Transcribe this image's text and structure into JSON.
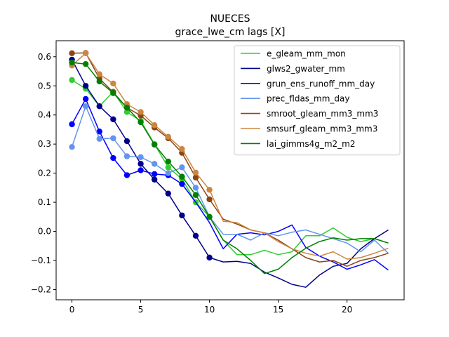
{
  "chart_data": {
    "type": "line",
    "title": "NUECES",
    "subtitle": "grace_lwe_cm lags [X]",
    "xlabel": "",
    "ylabel": "",
    "xlim": [
      -1.15,
      24.15
    ],
    "ylim": [
      -0.235,
      0.655
    ],
    "x_ticks": [
      0,
      5,
      10,
      15,
      20
    ],
    "y_ticks": [
      -0.2,
      -0.1,
      0.0,
      0.1,
      0.2,
      0.3,
      0.4,
      0.5,
      0.6
    ],
    "y_tick_labels": [
      "−0.2",
      "−0.1",
      "0.0",
      "0.1",
      "0.2",
      "0.3",
      "0.4",
      "0.5",
      "0.6"
    ],
    "grid": false,
    "legend_position": "upper right",
    "markers_note": "dots drawn on lags 0–10",
    "x": [
      0,
      1,
      2,
      3,
      4,
      5,
      6,
      7,
      8,
      9,
      10,
      11,
      12,
      13,
      14,
      15,
      16,
      17,
      18,
      19,
      20,
      21,
      22,
      23
    ],
    "series": [
      {
        "name": "e_gleam_mm_mon",
        "color": "#32cd32",
        "marker_count": 11,
        "values": [
          0.52,
          0.49,
          0.43,
          0.48,
          0.41,
          0.38,
          0.3,
          0.22,
          0.18,
          0.1,
          0.05,
          -0.03,
          -0.08,
          -0.08,
          -0.065,
          -0.08,
          -0.07,
          -0.015,
          -0.015,
          0.012,
          -0.02,
          -0.035,
          -0.025,
          -0.04
        ]
      },
      {
        "name": "glws2_gwater_mm",
        "color": "#00008b",
        "marker_count": 11,
        "values": [
          0.59,
          0.5,
          0.43,
          0.385,
          0.31,
          0.232,
          0.178,
          0.13,
          0.055,
          -0.015,
          -0.09,
          -0.105,
          -0.103,
          -0.11,
          -0.14,
          -0.16,
          -0.182,
          -0.192,
          -0.15,
          -0.12,
          -0.11,
          -0.06,
          -0.025,
          0.005
        ]
      },
      {
        "name": "grun_ens_runoff_mm_day",
        "color": "#0000ff",
        "marker_count": 9,
        "values": [
          0.368,
          0.455,
          0.343,
          0.252,
          0.193,
          0.21,
          0.197,
          0.193,
          0.163,
          0.1,
          0.03,
          -0.06,
          -0.01,
          -0.005,
          -0.012,
          0.0,
          0.022,
          -0.055,
          -0.085,
          -0.105,
          -0.13,
          -0.115,
          -0.097,
          -0.133
        ]
      },
      {
        "name": "prec_fldas_mm_day",
        "color": "#6495ed",
        "marker_count": 10,
        "values": [
          0.29,
          0.43,
          0.318,
          0.32,
          0.258,
          0.255,
          0.232,
          0.2,
          0.22,
          0.15,
          0.05,
          -0.01,
          -0.01,
          -0.03,
          -0.005,
          -0.015,
          -0.003,
          0.005,
          -0.01,
          -0.025,
          -0.04,
          -0.07,
          -0.03,
          -0.075
        ]
      },
      {
        "name": "smroot_gleam_mm3_mm3",
        "color": "#8b4513",
        "marker_count": 11,
        "values": [
          0.612,
          0.613,
          0.525,
          0.478,
          0.425,
          0.398,
          0.357,
          0.32,
          0.27,
          0.185,
          0.11,
          0.042,
          0.025,
          0.005,
          -0.005,
          -0.03,
          -0.06,
          -0.09,
          -0.105,
          -0.1,
          -0.12,
          -0.1,
          -0.09,
          -0.075
        ]
      },
      {
        "name": "smsurf_gleam_mm3_mm3",
        "color": "#cd853f",
        "marker_count": 11,
        "values": [
          0.57,
          0.612,
          0.54,
          0.508,
          0.437,
          0.41,
          0.365,
          0.325,
          0.283,
          0.202,
          0.143,
          0.035,
          0.03,
          0.005,
          -0.005,
          -0.035,
          -0.06,
          -0.075,
          -0.085,
          -0.07,
          -0.095,
          -0.09,
          -0.075,
          -0.058
        ]
      },
      {
        "name": "lai_gimms4g_m2_m2",
        "color": "#008000",
        "marker_count": 11,
        "values": [
          0.58,
          0.575,
          0.515,
          0.475,
          0.425,
          0.375,
          0.298,
          0.24,
          0.188,
          0.125,
          0.05,
          -0.03,
          -0.06,
          -0.1,
          -0.145,
          -0.13,
          -0.09,
          -0.058,
          -0.035,
          -0.022,
          -0.03,
          -0.025,
          -0.025,
          -0.04
        ]
      }
    ]
  }
}
